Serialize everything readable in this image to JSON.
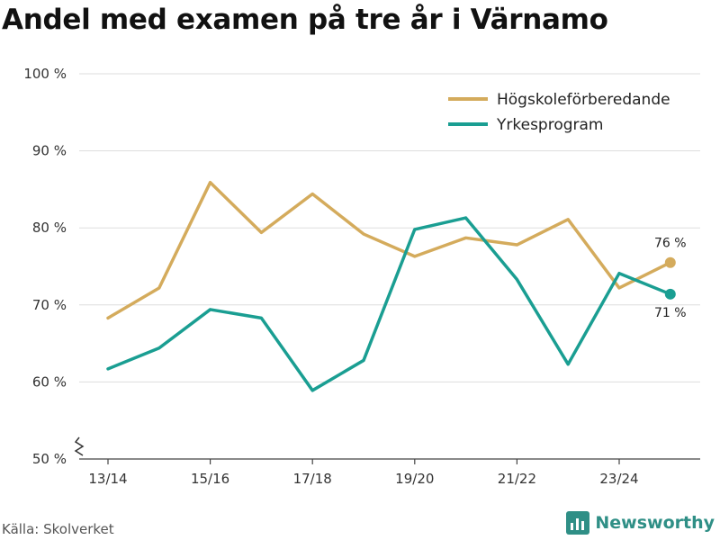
{
  "title": "Andel med examen på tre år i Värnamo",
  "source": "Källa: Skolverket",
  "brand": "Newsworthy",
  "chart_data": {
    "type": "line",
    "x_ticks": [
      "13/14",
      "15/16",
      "17/18",
      "19/20",
      "21/22",
      "23/24"
    ],
    "x": [
      "13/14",
      "14/15",
      "15/16",
      "16/17",
      "17/18",
      "18/19",
      "19/20",
      "20/21",
      "21/22",
      "22/23",
      "23/24",
      "24/25"
    ],
    "ylim": [
      50,
      100
    ],
    "y_ticks": [
      50,
      60,
      70,
      80,
      90,
      100
    ],
    "y_tick_labels": [
      "50 %",
      "60 %",
      "70 %",
      "80 %",
      "90 %",
      "100 %"
    ],
    "y_axis_break": true,
    "grid": true,
    "legend_position": "top-right",
    "series": [
      {
        "name": "Högskoleförberedande",
        "color": "#d4ab5c",
        "values": [
          68.3,
          72.2,
          85.9,
          79.4,
          84.4,
          79.2,
          76.3,
          78.7,
          77.8,
          81.1,
          72.2,
          75.5
        ],
        "end_label": "76 %"
      },
      {
        "name": "Yrkesprogram",
        "color": "#1a9e92",
        "values": [
          61.7,
          64.4,
          69.4,
          68.3,
          58.9,
          62.8,
          79.8,
          81.3,
          73.3,
          62.3,
          74.1,
          71.4
        ],
        "end_label": "71 %"
      }
    ]
  }
}
